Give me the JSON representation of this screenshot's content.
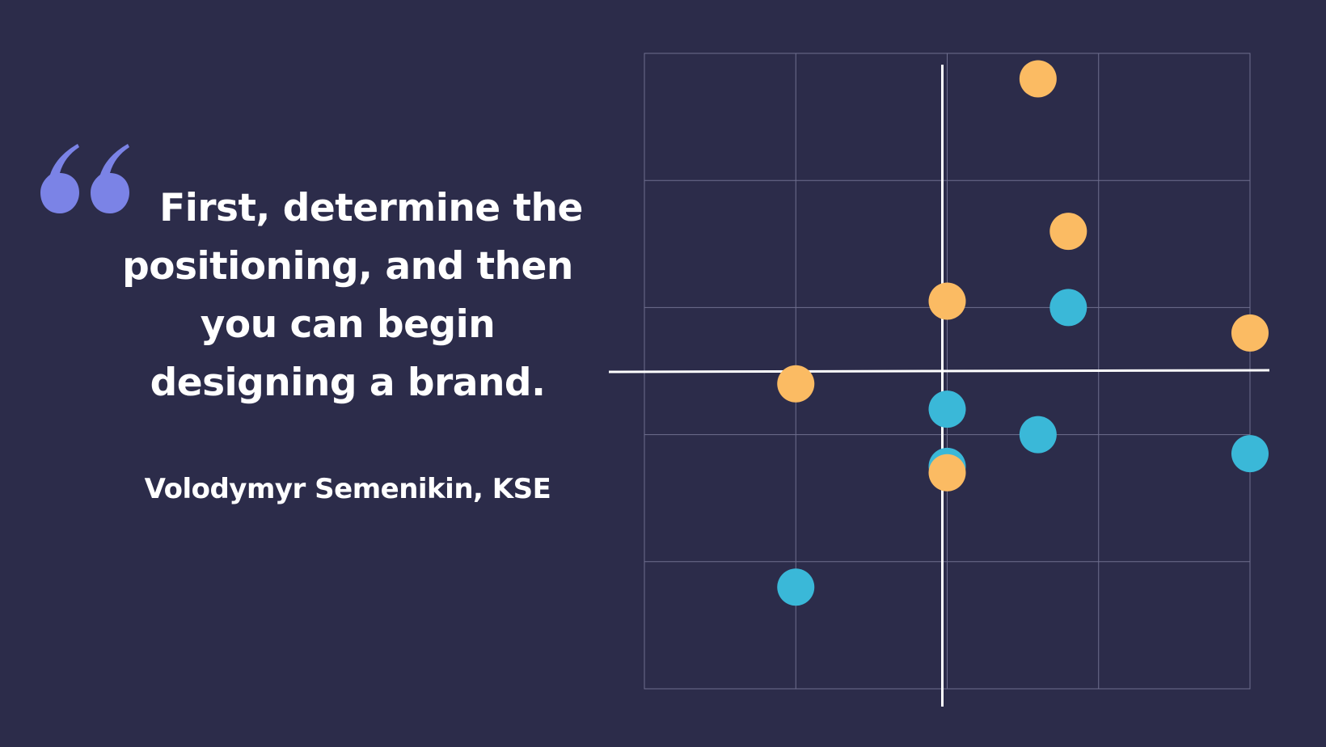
{
  "quote": {
    "lines": [
      "First, determine the",
      "positioning, and then",
      "you can begin",
      "designing a brand."
    ],
    "author": "Volodymyr Semenikin, KSE",
    "quote_icon": "quotation-mark-icon"
  },
  "colors": {
    "background": "#2c2c4a",
    "accent_quote": "#7b83e6",
    "orange": "#fbbb63",
    "teal": "#3ab8d8",
    "grid": "#6e6e8e",
    "axis": "#ffffff"
  },
  "chart_data": {
    "type": "scatter",
    "title": "",
    "xlabel": "",
    "ylabel": "",
    "xlim": [
      -2,
      2
    ],
    "ylim": [
      -2.5,
      2.5
    ],
    "grid": true,
    "legend": "none",
    "axes_through_origin": true,
    "series": [
      {
        "color": "#fbbb63",
        "points": [
          {
            "x": 0.6,
            "y": 2.3
          },
          {
            "x": 0.8,
            "y": 1.1
          },
          {
            "x": 0.0,
            "y": 0.55
          },
          {
            "x": 2.0,
            "y": 0.3
          },
          {
            "x": -1.0,
            "y": -0.1
          },
          {
            "x": 0.0,
            "y": -0.8
          }
        ]
      },
      {
        "color": "#3ab8d8",
        "points": [
          {
            "x": 0.8,
            "y": 0.5
          },
          {
            "x": 0.0,
            "y": -0.3
          },
          {
            "x": 0.6,
            "y": -0.5
          },
          {
            "x": 2.0,
            "y": -0.65
          },
          {
            "x": 0.0,
            "y": -0.75
          },
          {
            "x": -1.0,
            "y": -1.7
          }
        ]
      }
    ]
  }
}
